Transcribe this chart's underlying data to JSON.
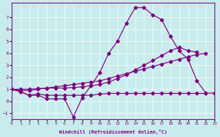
{
  "xlabel": "Windchill (Refroidissement éolien,°C)",
  "xlim": [
    0,
    23
  ],
  "ylim": [
    -1.5,
    8.2
  ],
  "yticks": [
    -1,
    0,
    1,
    2,
    3,
    4,
    5,
    6,
    7
  ],
  "xticks": [
    0,
    1,
    2,
    3,
    4,
    5,
    6,
    7,
    8,
    9,
    10,
    11,
    12,
    13,
    14,
    15,
    16,
    17,
    18,
    19,
    20,
    21,
    22,
    23
  ],
  "bg_color": "#c8ecec",
  "line_color": "#800080",
  "grid_color": "#ffffff",
  "marker": "D",
  "line1_x": [
    0,
    1,
    2,
    3,
    4,
    5,
    6,
    7,
    8,
    9,
    10,
    11,
    12,
    13,
    14,
    15,
    16,
    17,
    18,
    19,
    20,
    21,
    22
  ],
  "line1_y": [
    1.0,
    0.8,
    0.5,
    0.5,
    0.2,
    0.2,
    0.2,
    -1.3,
    0.3,
    1.3,
    2.4,
    4.0,
    5.0,
    6.5,
    7.8,
    7.8,
    7.2,
    6.8,
    5.4,
    4.2,
    3.5,
    1.7,
    0.7
  ],
  "line2_x": [
    0,
    1,
    2,
    3,
    4,
    5,
    6,
    7,
    8,
    9,
    10,
    11,
    12,
    13,
    14,
    15,
    16,
    17,
    18,
    19,
    20,
    21,
    22,
    23
  ],
  "line2_y": [
    1.0,
    0.8,
    0.5,
    0.6,
    0.5,
    0.5,
    0.5,
    0.5,
    0.5,
    0.5,
    0.6,
    0.65,
    0.65,
    0.65,
    0.65,
    0.65,
    0.65,
    0.65,
    0.65,
    0.65,
    0.65,
    0.65,
    0.65,
    0.7
  ],
  "line3_x": [
    0,
    1,
    2,
    3,
    4,
    5,
    6,
    7,
    8,
    9,
    10,
    11,
    12,
    13,
    14,
    15,
    16,
    17,
    18,
    19,
    20,
    21,
    22
  ],
  "line3_y": [
    1.0,
    0.9,
    0.9,
    1.0,
    1.1,
    1.2,
    1.3,
    1.4,
    1.5,
    1.6,
    1.7,
    1.9,
    2.1,
    2.3,
    2.5,
    2.7,
    2.9,
    3.1,
    3.3,
    3.5,
    3.7,
    3.9,
    4.0
  ],
  "line4_x": [
    0,
    1,
    2,
    3,
    4,
    5,
    6,
    7,
    8,
    9,
    10,
    11,
    12,
    13,
    14,
    15,
    16,
    17,
    18,
    19,
    20,
    21
  ],
  "line4_y": [
    1.0,
    1.0,
    1.0,
    1.05,
    1.1,
    1.1,
    1.1,
    1.15,
    1.2,
    1.3,
    1.4,
    1.6,
    1.9,
    2.2,
    2.6,
    3.0,
    3.4,
    3.8,
    4.2,
    4.5,
    4.2,
    4.1
  ]
}
